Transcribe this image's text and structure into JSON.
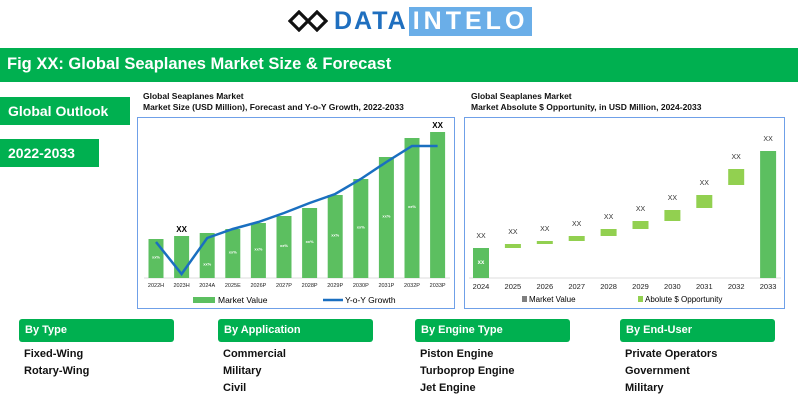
{
  "logo": {
    "part1": "DATA",
    "part2": "INTELO"
  },
  "banner": "Fig XX: Global Seaplanes Market Size & Forecast",
  "tags": [
    "Global Outlook",
    "2022-2033"
  ],
  "colors": {
    "brand_green": "#00b050",
    "bar_green": "#5cbf60",
    "line_blue": "#1a6fc0",
    "opportunity_green": "#92d050",
    "market_value_grey": "#7f7f7f"
  },
  "chart_data": [
    {
      "type": "bar+line",
      "title": "Global Seaplanes Market",
      "subtitle": "Market Size (USD Million), Forecast and Y-o-Y Growth, 2022-2033",
      "categories": [
        "2022H",
        "2023H",
        "2024A",
        "2025E",
        "2026P",
        "2027P",
        "2028P",
        "2029P",
        "2030P",
        "2031P",
        "2032P",
        "2033P"
      ],
      "series": [
        {
          "name": "Market Value",
          "type": "bar",
          "values": [
            39,
            42,
            45,
            49,
            55,
            62,
            70,
            83,
            99,
            121,
            140,
            146
          ],
          "bar_labels": [
            "xx%",
            "",
            "xx%",
            "xx%",
            "xx%",
            "xx%",
            "xx%",
            "xx%",
            "xx%",
            "xx%",
            "xx%",
            ""
          ]
        },
        {
          "name": "Y-o-Y Growth",
          "type": "line",
          "values": [
            36,
            4,
            40,
            49,
            56,
            65,
            75,
            84,
            99,
            116,
            132,
            132
          ]
        }
      ],
      "annotations": [
        {
          "category": "2023H",
          "text": "XX"
        },
        {
          "category": "2033P",
          "text": "XX"
        }
      ],
      "legend": "bottom",
      "grid": false
    },
    {
      "type": "waterfall",
      "title": "Global Seaplanes Market",
      "subtitle": "Market Absolute $ Opportunity, in USD Million, 2024-2033",
      "categories": [
        "2024",
        "2025",
        "2026",
        "2027",
        "2028",
        "2029",
        "2030",
        "2031",
        "2032",
        "2033"
      ],
      "ranges": [
        [
          0,
          30
        ],
        [
          30,
          34
        ],
        [
          34,
          37
        ],
        [
          37,
          42
        ],
        [
          42,
          49
        ],
        [
          49,
          57
        ],
        [
          57,
          68
        ],
        [
          70,
          83
        ],
        [
          93,
          109
        ],
        [
          0,
          127
        ]
      ],
      "kinds": [
        "value",
        "opp",
        "opp",
        "opp",
        "opp",
        "opp",
        "opp",
        "opp",
        "opp",
        "value"
      ],
      "data_labels": [
        "XX",
        "XX",
        "XX",
        "XX",
        "XX",
        "XX",
        "XX",
        "XX",
        "XX",
        "XX"
      ],
      "inner_label": "xx",
      "legend_entries": [
        "Market Value",
        "Abolute $ Opportunity"
      ],
      "legend": "bottom",
      "grid": false
    }
  ],
  "segments": [
    {
      "title": "By Type",
      "items": [
        "Fixed-Wing",
        "Rotary-Wing"
      ]
    },
    {
      "title": "By Application",
      "items": [
        "Commercial",
        "Military",
        "Civil"
      ]
    },
    {
      "title": "By Engine Type",
      "items": [
        "Piston Engine",
        "Turboprop Engine",
        "Jet Engine"
      ]
    },
    {
      "title": "By End-User",
      "items": [
        "Private Operators",
        "Government",
        "Military"
      ]
    }
  ]
}
